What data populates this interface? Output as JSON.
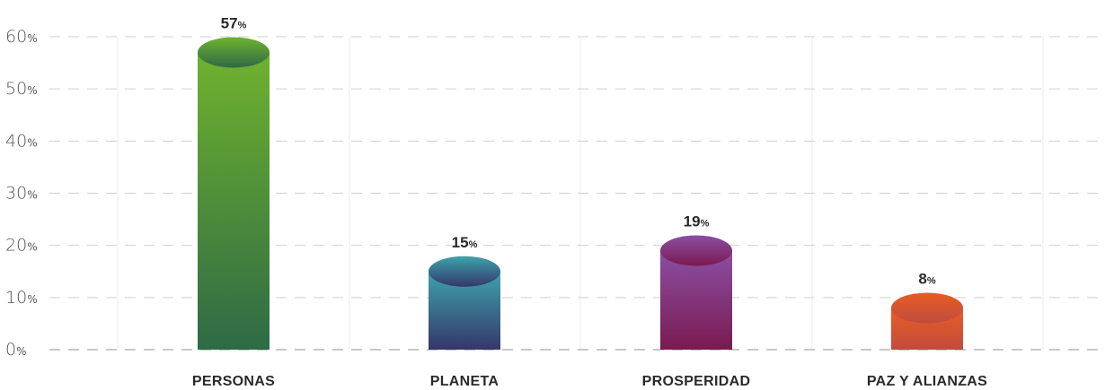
{
  "chart_data": {
    "type": "bar",
    "categories": [
      "PERSONAS",
      "PLANETA",
      "PROSPERIDAD",
      "PAZ Y ALIANZAS"
    ],
    "values": [
      57,
      15,
      19,
      8
    ],
    "value_unit": "%",
    "ylim": [
      0,
      60
    ],
    "yticks": [
      0,
      10,
      20,
      30,
      40,
      50,
      60
    ],
    "grid": true,
    "colors": {
      "PERSONAS": [
        "#6fb22e",
        "#2e6a45"
      ],
      "PLANETA": [
        "#3ea3ab",
        "#34376b"
      ],
      "PROSPERIDAD": [
        "#8a4fa4",
        "#7a1a50"
      ],
      "PAZ Y ALIANZAS": [
        "#e95d24",
        "#c04c3f"
      ]
    }
  }
}
